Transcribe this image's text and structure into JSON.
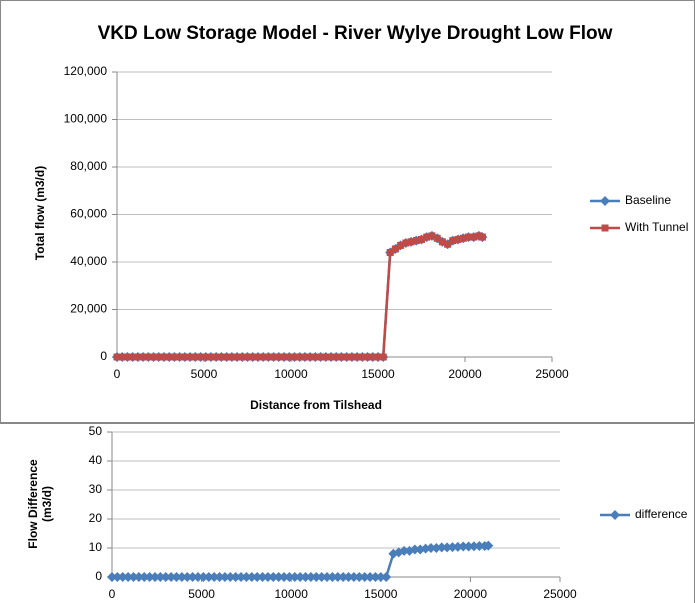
{
  "chart_data": [
    {
      "type": "line",
      "title": "VKD Low Storage Model - River Wylye Drought Low Flow",
      "ylabel": "Total flow (m3/d)",
      "xlabel": "Distance from Tilshead",
      "x": [
        0,
        300,
        600,
        900,
        1200,
        1500,
        1800,
        2100,
        2400,
        2700,
        3000,
        3300,
        3600,
        3900,
        4200,
        4500,
        4800,
        5100,
        5400,
        5700,
        6000,
        6300,
        6600,
        6900,
        7200,
        7500,
        7800,
        8100,
        8400,
        8700,
        9000,
        9300,
        9600,
        9900,
        10200,
        10500,
        10800,
        11100,
        11400,
        11700,
        12000,
        12300,
        12600,
        12900,
        13200,
        13500,
        13800,
        14100,
        14400,
        14700,
        15000,
        15300,
        15700,
        16000,
        16300,
        16600,
        16900,
        17200,
        17500,
        17800,
        18100,
        18400,
        18700,
        19000,
        19300,
        19600,
        19900,
        20200,
        20500,
        20800,
        21000
      ],
      "series": [
        {
          "name": "Baseline",
          "color": "#4a7ebb",
          "marker": "diamond",
          "values": [
            0,
            0,
            0,
            0,
            0,
            0,
            0,
            0,
            0,
            0,
            0,
            0,
            0,
            0,
            0,
            0,
            0,
            0,
            0,
            0,
            0,
            0,
            0,
            0,
            0,
            0,
            0,
            0,
            0,
            0,
            0,
            0,
            0,
            0,
            0,
            0,
            0,
            0,
            0,
            0,
            0,
            0,
            0,
            0,
            0,
            0,
            0,
            0,
            0,
            0,
            0,
            0,
            44000,
            45500,
            47000,
            48000,
            48500,
            49000,
            49500,
            50500,
            51000,
            50000,
            48500,
            47500,
            49000,
            49500,
            50000,
            50500,
            50500,
            51000,
            50500
          ]
        },
        {
          "name": "With Tunnel",
          "color": "#be4b48",
          "marker": "square",
          "values": [
            0,
            0,
            0,
            0,
            0,
            0,
            0,
            0,
            0,
            0,
            0,
            0,
            0,
            0,
            0,
            0,
            0,
            0,
            0,
            0,
            0,
            0,
            0,
            0,
            0,
            0,
            0,
            0,
            0,
            0,
            0,
            0,
            0,
            0,
            0,
            0,
            0,
            0,
            0,
            0,
            0,
            0,
            0,
            0,
            0,
            0,
            0,
            0,
            0,
            0,
            0,
            0,
            44000,
            45500,
            47000,
            48000,
            48500,
            49000,
            49500,
            50500,
            51000,
            50000,
            48500,
            47500,
            49000,
            49500,
            50000,
            50500,
            50500,
            51000,
            50500
          ]
        }
      ],
      "xlim": [
        0,
        25000
      ],
      "xticks": [
        0,
        5000,
        10000,
        15000,
        20000,
        25000
      ],
      "ylim": [
        0,
        120000
      ],
      "yticks": [
        0,
        {
          "value": 20000,
          "label": "20,000"
        },
        {
          "value": 40000,
          "label": "40,000"
        },
        {
          "value": 60000,
          "label": "60,000"
        },
        {
          "value": 80000,
          "label": "80,000"
        },
        {
          "value": 100000,
          "label": "100,000"
        },
        {
          "value": 120000,
          "label": "120,000"
        }
      ],
      "grid": true,
      "legend": "right"
    },
    {
      "type": "line",
      "ylabel": "Flow Difference (m3/d)",
      "x": [
        0,
        300,
        600,
        900,
        1200,
        1500,
        1800,
        2100,
        2400,
        2700,
        3000,
        3300,
        3600,
        3900,
        4200,
        4500,
        4800,
        5100,
        5400,
        5700,
        6000,
        6300,
        6600,
        6900,
        7200,
        7500,
        7800,
        8100,
        8400,
        8700,
        9000,
        9300,
        9600,
        9900,
        10200,
        10500,
        10800,
        11100,
        11400,
        11700,
        12000,
        12300,
        12600,
        12900,
        13200,
        13500,
        13800,
        14100,
        14400,
        14700,
        15000,
        15300,
        15700,
        16000,
        16300,
        16600,
        16900,
        17200,
        17500,
        17800,
        18100,
        18400,
        18700,
        19000,
        19300,
        19600,
        19900,
        20200,
        20500,
        20800,
        21000
      ],
      "series": [
        {
          "name": "difference",
          "color": "#4a7ebb",
          "marker": "diamond",
          "values": [
            0,
            0,
            0,
            0,
            0,
            0,
            0,
            0,
            0,
            0,
            0,
            0,
            0,
            0,
            0,
            0,
            0,
            0,
            0,
            0,
            0,
            0,
            0,
            0,
            0,
            0,
            0,
            0,
            0,
            0,
            0,
            0,
            0,
            0,
            0,
            0,
            0,
            0,
            0,
            0,
            0,
            0,
            0,
            0,
            0,
            0,
            0,
            0,
            0,
            0,
            0,
            0,
            8,
            8.5,
            9,
            9,
            9.5,
            9.5,
            9.8,
            10,
            10,
            10.2,
            10.2,
            10.3,
            10.4,
            10.5,
            10.5,
            10.6,
            10.7,
            10.7,
            10.8
          ]
        }
      ],
      "xlim": [
        0,
        25000
      ],
      "xticks": [
        0,
        5000,
        10000,
        15000,
        20000,
        25000
      ],
      "ylim": [
        0,
        50
      ],
      "yticks": [
        0,
        10,
        20,
        30,
        40,
        50
      ],
      "grid": true,
      "legend": "right"
    }
  ]
}
